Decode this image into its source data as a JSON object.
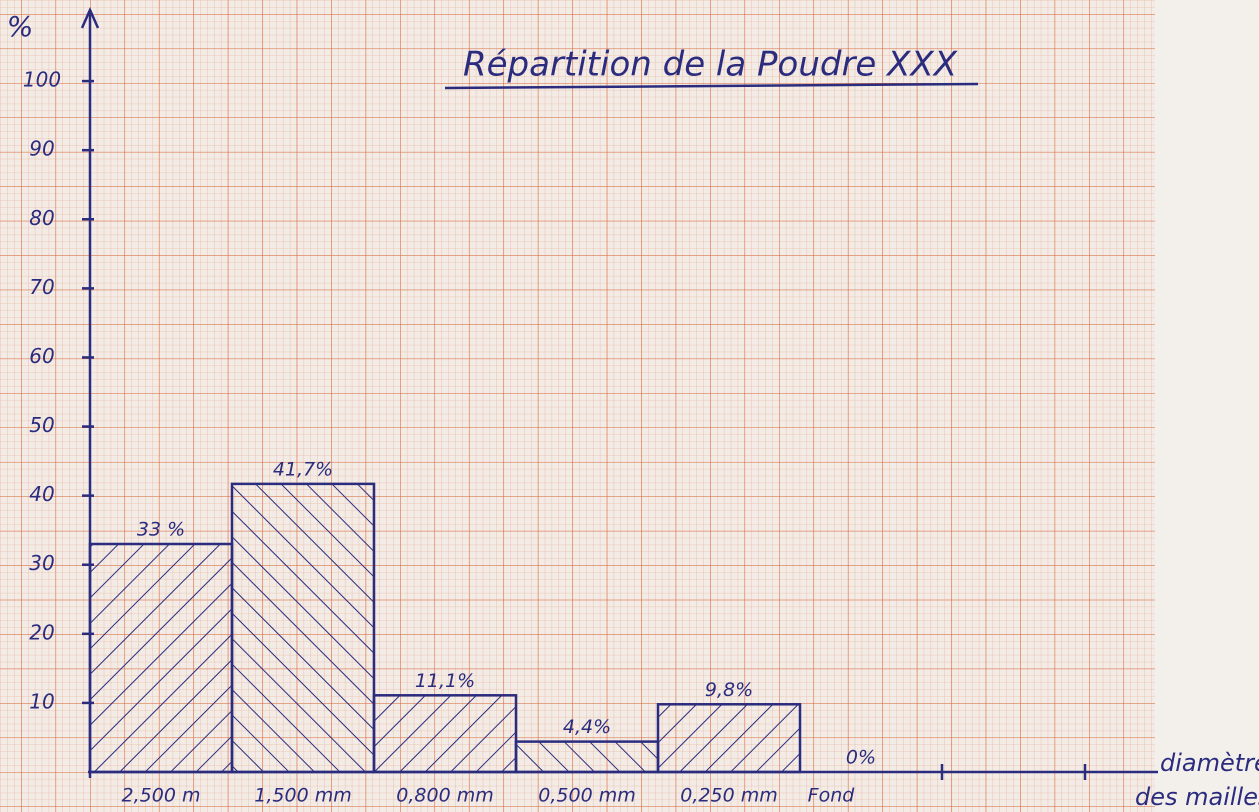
{
  "chart_data": {
    "type": "bar",
    "title": "Répartition de la Poudre XXX",
    "y_label": "%",
    "x_label": [
      "diamètre",
      "des mailles"
    ],
    "categories": [
      "2,500 m",
      "1,500 mm",
      "0,800 mm",
      "0,500 mm",
      "0,250 mm",
      "Fond"
    ],
    "values": [
      33,
      41.7,
      11.1,
      4.4,
      9.8,
      0
    ],
    "value_labels": [
      "33 %",
      "41,7%",
      "11,1%",
      "4,4%",
      "9,8%",
      "0%"
    ],
    "color": "#2b2c7e",
    "ylim": [
      0,
      110
    ],
    "yticks": [
      10,
      20,
      30,
      40,
      50,
      60,
      70,
      80,
      90,
      100
    ]
  }
}
